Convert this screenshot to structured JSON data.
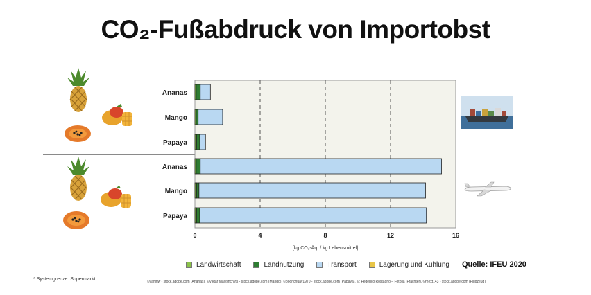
{
  "title": "CO₂-Fußabdruck von Importobst",
  "chart_data": {
    "type": "bar",
    "orientation": "horizontal",
    "stacked": true,
    "groups": [
      "ship",
      "plane"
    ],
    "categories": [
      "Ananas",
      "Mango",
      "Papaya",
      "Ananas",
      "Mango",
      "Papaya"
    ],
    "category_group": [
      0,
      0,
      0,
      1,
      1,
      1
    ],
    "series": [
      {
        "name": "Landwirtschaft",
        "color": "#8bc34a",
        "values": [
          0.08,
          0.08,
          0.1,
          0.08,
          0.1,
          0.1
        ]
      },
      {
        "name": "Landnutzung",
        "color": "#2e7d32",
        "values": [
          0.25,
          0.12,
          0.2,
          0.25,
          0.15,
          0.2
        ]
      },
      {
        "name": "Transport",
        "color": "#b9d8f2",
        "values": [
          0.62,
          1.5,
          0.35,
          14.8,
          13.9,
          13.9
        ]
      },
      {
        "name": "Lagerung und Kühlung",
        "color": "#e8c547",
        "values": [
          0.0,
          0.0,
          0.0,
          0.0,
          0.0,
          0.0
        ]
      }
    ],
    "xlim": [
      0,
      16
    ],
    "x_ticks": [
      "0",
      "4",
      "8",
      "12",
      "16"
    ],
    "xlabel": "[kg CO₂-Äq. / kg Lebensmittel]",
    "grid": "dashed vertical"
  },
  "legend_position": "bottom",
  "source_label": "Quelle: IFEU 2020",
  "footnote": "* Systemgrenze: Supermarkt",
  "credits": "©vamtiw - stock.adobe.com (Ananas), ©Viktar Malyshchyts - stock.adobe.com (Mango), ©boonchuay1970 - stock.adobe.com (Papaya), ©: Federico Rostagno – Fotolia (Frachter), ©mext143 - stock.adobe.com (Flugzeug)",
  "icons": [
    "pineapple-icon",
    "mango-icon",
    "papaya-icon",
    "cargo-ship-icon",
    "airplane-icon"
  ]
}
